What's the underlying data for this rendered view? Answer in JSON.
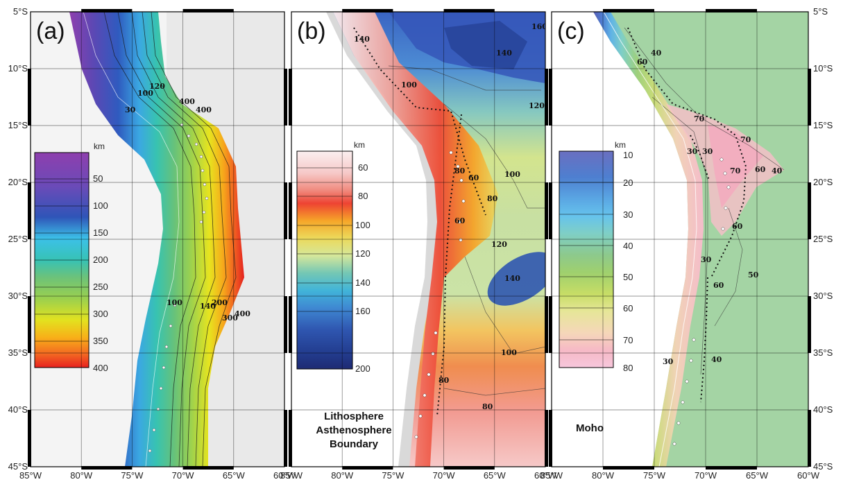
{
  "axes": {
    "lat_labels": [
      "5°S",
      "10°S",
      "15°S",
      "20°S",
      "25°S",
      "30°S",
      "35°S",
      "40°S",
      "45°S"
    ],
    "lon_labels": [
      "85°W",
      "80°W",
      "75°W",
      "70°W",
      "65°W",
      "60°W"
    ]
  },
  "panels": [
    {
      "id": "a",
      "letter": "(a)",
      "colorbar": {
        "unit": "km",
        "ticks": [
          "50",
          "100",
          "150",
          "200",
          "250",
          "300",
          "350",
          "400"
        ],
        "colors": [
          "#8e3fae",
          "#6a4bb8",
          "#3b55b8",
          "#2f78d4",
          "#3cc1e8",
          "#37c2b5",
          "#6cc27a",
          "#9bd04e",
          "#e3e21f",
          "#f8b018",
          "#f26522",
          "#e8211f"
        ]
      },
      "contour_labels": [
        "400",
        "300",
        "120",
        "100",
        "30",
        "100",
        "140",
        "200",
        "300",
        "400"
      ]
    },
    {
      "id": "b",
      "letter": "(b)",
      "colorbar": {
        "unit": "km",
        "ticks": [
          "60",
          "80",
          "100",
          "120",
          "140",
          "160",
          "200"
        ],
        "colors": [
          "#fbeff0",
          "#f6c9c8",
          "#f08a7e",
          "#ee4332",
          "#f6a629",
          "#ecd95b",
          "#d5e79b",
          "#74c7b4",
          "#41b4d9",
          "#3f88d2",
          "#2f56b0",
          "#233e91",
          "#1e2a73"
        ]
      },
      "contour_labels": [
        "140",
        "160",
        "140",
        "100",
        "120",
        "80",
        "60",
        "100",
        "80",
        "140",
        "120",
        "140",
        "100",
        "80",
        "80",
        "60"
      ],
      "caption": [
        "Lithosphere",
        "Asthenosphere",
        "Boundary"
      ]
    },
    {
      "id": "c",
      "letter": "(c)",
      "colorbar": {
        "unit": "km",
        "ticks": [
          "10",
          "20",
          "30",
          "40",
          "50",
          "60",
          "70",
          "80"
        ],
        "colors": [
          "#6a6fc0",
          "#4e7fd0",
          "#5aa6e3",
          "#66c3ec",
          "#7fcfc6",
          "#8dc98c",
          "#9fd06e",
          "#c7dd66",
          "#e6e698",
          "#f5d7b9",
          "#f6b9c6",
          "#f7c7dc"
        ]
      },
      "contour_labels": [
        "40",
        "60",
        "70",
        "70",
        "30",
        "30",
        "70",
        "60",
        "40",
        "60",
        "30",
        "50",
        "60",
        "30",
        "40"
      ],
      "caption": [
        "Moho"
      ]
    }
  ]
}
